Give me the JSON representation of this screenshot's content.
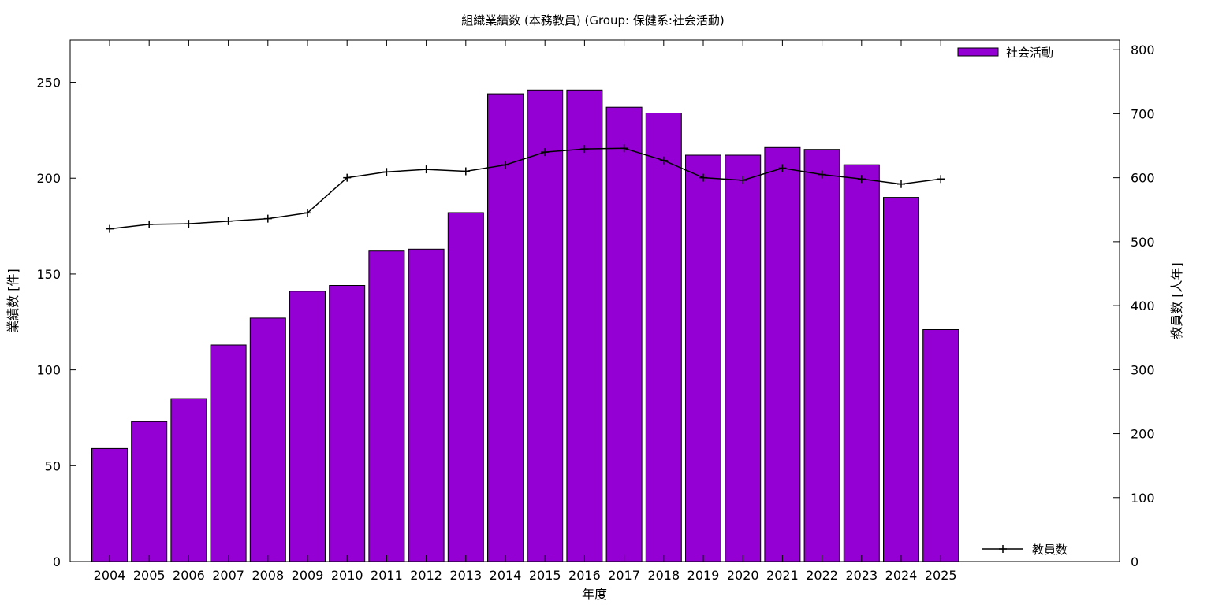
{
  "chart_data": {
    "type": "bar",
    "title": "組織業績数 (本務教員) (Group: 保健系:社会活動)",
    "xlabel": "年度",
    "ylabel": "業績数 [件]",
    "y2label": "教員数 [人年]",
    "categories": [
      "2004",
      "2005",
      "2006",
      "2007",
      "2008",
      "2009",
      "2010",
      "2011",
      "2012",
      "2013",
      "2014",
      "2015",
      "2016",
      "2017",
      "2018",
      "2019",
      "2020",
      "2021",
      "2022",
      "2023",
      "2024",
      "2025"
    ],
    "series": [
      {
        "name": "社会活動",
        "type": "bar",
        "axis": "left",
        "color": "#9400d3",
        "values": [
          59,
          73,
          85,
          113,
          127,
          141,
          144,
          162,
          163,
          182,
          244,
          246,
          246,
          237,
          234,
          212,
          212,
          216,
          215,
          207,
          190,
          121
        ]
      },
      {
        "name": "教員数",
        "type": "line",
        "axis": "right",
        "color": "#000000",
        "values": [
          520,
          527,
          528,
          532,
          536,
          545,
          600,
          609,
          613,
          610,
          620,
          640,
          645,
          646,
          627,
          600,
          596,
          615,
          605,
          598,
          590,
          598
        ]
      }
    ],
    "ylim": [
      0,
      272
    ],
    "y2lim": [
      0,
      815
    ],
    "yticks": [
      0,
      50,
      100,
      150,
      200,
      250
    ],
    "y2ticks": [
      0,
      100,
      200,
      300,
      400,
      500,
      600,
      700,
      800
    ],
    "grid": false,
    "legend": [
      "top-right",
      "bottom-right"
    ]
  }
}
